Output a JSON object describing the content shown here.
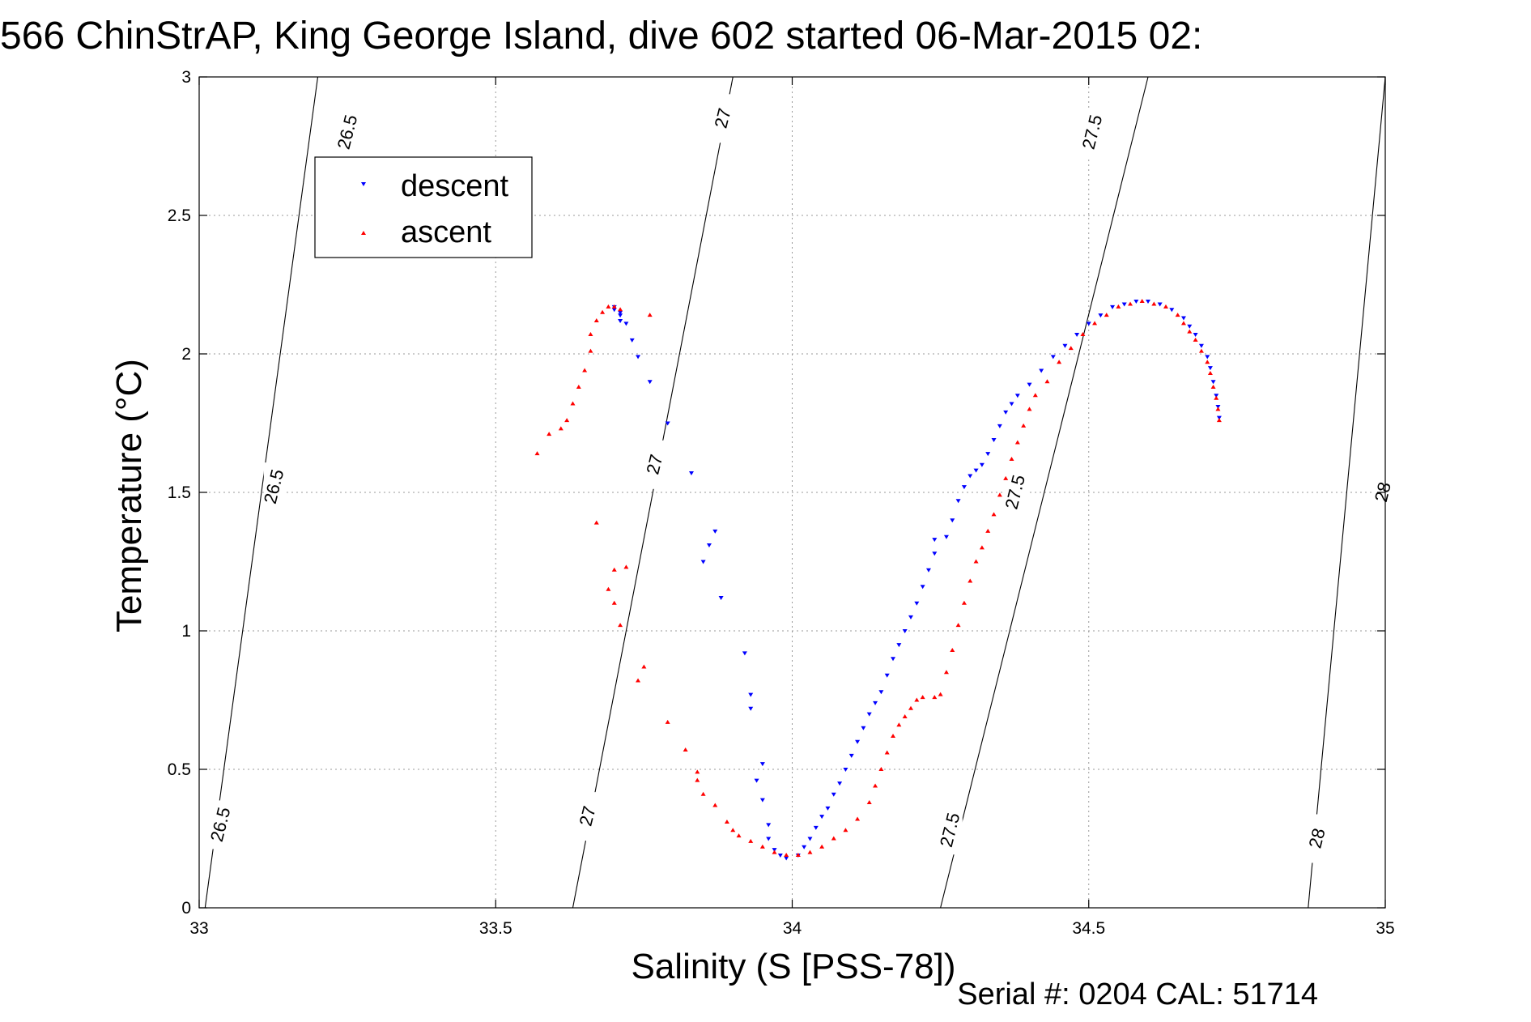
{
  "chart_data": {
    "type": "scatter",
    "title": "566 ChinStrAP, King George Island, dive 602 started 06-Mar-2015 02:",
    "xlabel": "Salinity (S [PSS-78])",
    "ylabel": "Temperature (°C)",
    "xlim": [
      33,
      35
    ],
    "ylim": [
      0,
      3
    ],
    "xticks": [
      33,
      33.5,
      34,
      34.5,
      35
    ],
    "xtick_labels": [
      "33",
      "33.5",
      "34",
      "34.5",
      "35"
    ],
    "yticks": [
      0,
      0.5,
      1,
      1.5,
      2,
      2.5,
      3
    ],
    "ytick_labels": [
      "0",
      "0.5",
      "1",
      "1.5",
      "2",
      "2.5",
      "3"
    ],
    "grid": true,
    "legend_position": "top-left",
    "contours": [
      {
        "label": "26.5",
        "x0": 33.01,
        "x1": 33.2
      },
      {
        "label": "27",
        "x0": 33.63,
        "x1": 33.9
      },
      {
        "label": "27.5",
        "x0": 34.25,
        "x1": 34.6
      },
      {
        "label": "28",
        "x0": 34.87,
        "x1": 35.0
      }
    ],
    "contour_labels": [
      {
        "text": "26.5",
        "x": 33.038,
        "y": 0.3
      },
      {
        "text": "26.5",
        "x": 33.128,
        "y": 1.52
      },
      {
        "text": "26.5",
        "x": 33.252,
        "y": 2.8
      },
      {
        "text": "27",
        "x": 33.657,
        "y": 0.33
      },
      {
        "text": "27",
        "x": 33.77,
        "y": 1.6
      },
      {
        "text": "27",
        "x": 33.885,
        "y": 2.85
      },
      {
        "text": "27.5",
        "x": 34.268,
        "y": 0.28
      },
      {
        "text": "27.5",
        "x": 34.378,
        "y": 1.5
      },
      {
        "text": "27.5",
        "x": 34.508,
        "y": 2.8
      },
      {
        "text": "28",
        "x": 34.887,
        "y": 0.25
      },
      {
        "text": "28",
        "x": 34.998,
        "y": 1.5
      }
    ],
    "series": [
      {
        "name": "descent",
        "color": "#0000ff",
        "marker": "triangle-down",
        "points": [
          [
            33.7,
            2.17
          ],
          [
            33.7,
            2.16
          ],
          [
            33.71,
            2.15
          ],
          [
            33.71,
            2.14
          ],
          [
            33.71,
            2.12
          ],
          [
            33.72,
            2.11
          ],
          [
            33.73,
            2.05
          ],
          [
            33.74,
            1.99
          ],
          [
            33.76,
            1.9
          ],
          [
            33.79,
            1.75
          ],
          [
            33.83,
            1.57
          ],
          [
            33.87,
            1.36
          ],
          [
            33.86,
            1.31
          ],
          [
            33.85,
            1.25
          ],
          [
            33.88,
            1.12
          ],
          [
            33.92,
            0.92
          ],
          [
            33.93,
            0.77
          ],
          [
            33.93,
            0.72
          ],
          [
            33.95,
            0.52
          ],
          [
            33.94,
            0.46
          ],
          [
            33.95,
            0.39
          ],
          [
            33.96,
            0.3
          ],
          [
            33.96,
            0.25
          ],
          [
            33.97,
            0.21
          ],
          [
            33.98,
            0.19
          ],
          [
            33.99,
            0.18
          ],
          [
            34.01,
            0.19
          ],
          [
            34.02,
            0.22
          ],
          [
            34.03,
            0.25
          ],
          [
            34.04,
            0.29
          ],
          [
            34.05,
            0.33
          ],
          [
            34.06,
            0.36
          ],
          [
            34.07,
            0.41
          ],
          [
            34.08,
            0.45
          ],
          [
            34.09,
            0.5
          ],
          [
            34.1,
            0.55
          ],
          [
            34.11,
            0.6
          ],
          [
            34.12,
            0.65
          ],
          [
            34.13,
            0.7
          ],
          [
            34.14,
            0.74
          ],
          [
            34.15,
            0.78
          ],
          [
            34.16,
            0.84
          ],
          [
            34.17,
            0.9
          ],
          [
            34.18,
            0.95
          ],
          [
            34.19,
            1.0
          ],
          [
            34.2,
            1.05
          ],
          [
            34.21,
            1.1
          ],
          [
            34.22,
            1.16
          ],
          [
            34.23,
            1.22
          ],
          [
            34.24,
            1.28
          ],
          [
            34.24,
            1.33
          ],
          [
            34.26,
            1.34
          ],
          [
            34.27,
            1.4
          ],
          [
            34.28,
            1.47
          ],
          [
            34.29,
            1.52
          ],
          [
            34.3,
            1.56
          ],
          [
            34.31,
            1.58
          ],
          [
            34.32,
            1.6
          ],
          [
            34.33,
            1.64
          ],
          [
            34.34,
            1.69
          ],
          [
            34.35,
            1.74
          ],
          [
            34.36,
            1.79
          ],
          [
            34.37,
            1.82
          ],
          [
            34.38,
            1.85
          ],
          [
            34.4,
            1.89
          ],
          [
            34.42,
            1.94
          ],
          [
            34.44,
            1.99
          ],
          [
            34.46,
            2.03
          ],
          [
            34.48,
            2.07
          ],
          [
            34.5,
            2.11
          ],
          [
            34.52,
            2.14
          ],
          [
            34.54,
            2.17
          ],
          [
            34.56,
            2.18
          ],
          [
            34.58,
            2.19
          ],
          [
            34.6,
            2.19
          ],
          [
            34.62,
            2.18
          ],
          [
            34.64,
            2.16
          ],
          [
            34.66,
            2.13
          ],
          [
            34.67,
            2.1
          ],
          [
            34.68,
            2.07
          ],
          [
            34.69,
            2.03
          ],
          [
            34.7,
            1.99
          ],
          [
            34.705,
            1.95
          ],
          [
            34.71,
            1.9
          ],
          [
            34.715,
            1.85
          ],
          [
            34.718,
            1.81
          ],
          [
            34.72,
            1.77
          ]
        ]
      },
      {
        "name": "ascent",
        "color": "#ff0000",
        "marker": "triangle-up",
        "points": [
          [
            33.57,
            1.64
          ],
          [
            33.59,
            1.71
          ],
          [
            33.61,
            1.73
          ],
          [
            33.62,
            1.76
          ],
          [
            33.63,
            1.82
          ],
          [
            33.64,
            1.88
          ],
          [
            33.65,
            1.94
          ],
          [
            33.66,
            2.01
          ],
          [
            33.66,
            2.07
          ],
          [
            33.67,
            2.12
          ],
          [
            33.68,
            2.15
          ],
          [
            33.69,
            2.17
          ],
          [
            33.7,
            2.17
          ],
          [
            33.71,
            2.16
          ],
          [
            33.76,
            2.14
          ],
          [
            33.67,
            1.39
          ],
          [
            33.7,
            1.22
          ],
          [
            33.72,
            1.23
          ],
          [
            33.69,
            1.15
          ],
          [
            33.7,
            1.1
          ],
          [
            33.71,
            1.02
          ],
          [
            33.75,
            0.87
          ],
          [
            33.74,
            0.82
          ],
          [
            33.79,
            0.67
          ],
          [
            33.82,
            0.57
          ],
          [
            33.84,
            0.49
          ],
          [
            33.84,
            0.46
          ],
          [
            33.85,
            0.41
          ],
          [
            33.87,
            0.37
          ],
          [
            33.89,
            0.31
          ],
          [
            33.9,
            0.28
          ],
          [
            33.91,
            0.26
          ],
          [
            33.93,
            0.24
          ],
          [
            33.95,
            0.22
          ],
          [
            33.97,
            0.2
          ],
          [
            33.99,
            0.19
          ],
          [
            34.01,
            0.19
          ],
          [
            34.03,
            0.2
          ],
          [
            34.05,
            0.22
          ],
          [
            34.07,
            0.25
          ],
          [
            34.09,
            0.28
          ],
          [
            34.11,
            0.32
          ],
          [
            34.13,
            0.38
          ],
          [
            34.14,
            0.44
          ],
          [
            34.15,
            0.5
          ],
          [
            34.16,
            0.56
          ],
          [
            34.17,
            0.62
          ],
          [
            34.18,
            0.66
          ],
          [
            34.19,
            0.69
          ],
          [
            34.2,
            0.72
          ],
          [
            34.21,
            0.75
          ],
          [
            34.22,
            0.76
          ],
          [
            34.24,
            0.76
          ],
          [
            34.25,
            0.77
          ],
          [
            34.26,
            0.85
          ],
          [
            34.27,
            0.93
          ],
          [
            34.28,
            1.02
          ],
          [
            34.29,
            1.1
          ],
          [
            34.3,
            1.18
          ],
          [
            34.31,
            1.25
          ],
          [
            34.32,
            1.3
          ],
          [
            34.33,
            1.36
          ],
          [
            34.34,
            1.42
          ],
          [
            34.35,
            1.49
          ],
          [
            34.36,
            1.55
          ],
          [
            34.37,
            1.62
          ],
          [
            34.38,
            1.68
          ],
          [
            34.39,
            1.74
          ],
          [
            34.4,
            1.8
          ],
          [
            34.41,
            1.85
          ],
          [
            34.43,
            1.9
          ],
          [
            34.45,
            1.97
          ],
          [
            34.47,
            2.02
          ],
          [
            34.49,
            2.07
          ],
          [
            34.51,
            2.11
          ],
          [
            34.53,
            2.14
          ],
          [
            34.55,
            2.17
          ],
          [
            34.57,
            2.18
          ],
          [
            34.59,
            2.19
          ],
          [
            34.61,
            2.18
          ],
          [
            34.63,
            2.17
          ],
          [
            34.65,
            2.14
          ],
          [
            34.66,
            2.11
          ],
          [
            34.67,
            2.08
          ],
          [
            34.68,
            2.05
          ],
          [
            34.69,
            2.01
          ],
          [
            34.7,
            1.97
          ],
          [
            34.705,
            1.93
          ],
          [
            34.71,
            1.88
          ],
          [
            34.715,
            1.84
          ],
          [
            34.718,
            1.8
          ],
          [
            34.72,
            1.76
          ]
        ]
      }
    ]
  },
  "legend": {
    "entries": [
      {
        "label": "descent",
        "color": "#0000ff",
        "marker": "triangle-down"
      },
      {
        "label": "ascent",
        "color": "#ff0000",
        "marker": "triangle-up"
      }
    ]
  },
  "footer": {
    "text": "Serial #: 0204  CAL: 51714"
  }
}
